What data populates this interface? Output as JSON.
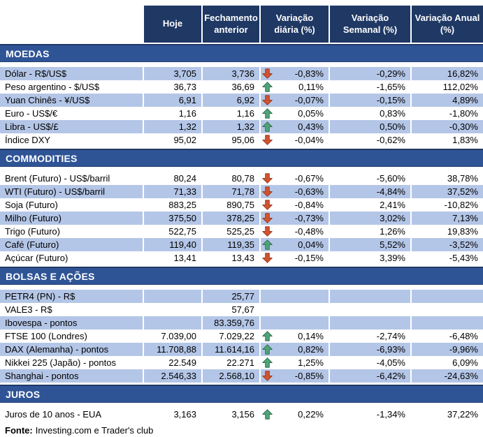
{
  "columns": [
    "Hoje",
    "Fechamento anterior",
    "Variação diária (%)",
    "Variação Semanal (%)",
    "Variação Anual (%)"
  ],
  "sections": [
    {
      "title": "MOEDAS",
      "first_row_shaded": true,
      "rows": [
        {
          "label": "Dólar - R$/US$",
          "hoje": "3,705",
          "anterior": "3,736",
          "arrow": "down",
          "var_diaria": "-0,83%",
          "var_semanal": "-0,29%",
          "var_anual": "16,82%"
        },
        {
          "label": "Peso argentino - $/US$",
          "hoje": "36,73",
          "anterior": "36,69",
          "arrow": "up",
          "var_diaria": "0,11%",
          "var_semanal": "-1,65%",
          "var_anual": "112,02%"
        },
        {
          "label": "Yuan Chinês - ¥/US$",
          "hoje": "6,91",
          "anterior": "6,92",
          "arrow": "down",
          "var_diaria": "-0,07%",
          "var_semanal": "-0,15%",
          "var_anual": "4,89%"
        },
        {
          "label": "Euro - US$/€",
          "hoje": "1,16",
          "anterior": "1,16",
          "arrow": "up",
          "var_diaria": "0,05%",
          "var_semanal": "0,83%",
          "var_anual": "-1,80%"
        },
        {
          "label": "Libra - US$/£",
          "hoje": "1,32",
          "anterior": "1,32",
          "arrow": "up",
          "var_diaria": "0,43%",
          "var_semanal": "0,50%",
          "var_anual": "-0,30%"
        },
        {
          "label": "Índice DXY",
          "hoje": "95,02",
          "anterior": "95,06",
          "arrow": "down",
          "var_diaria": "-0,04%",
          "var_semanal": "-0,62%",
          "var_anual": "1,83%"
        }
      ]
    },
    {
      "title": "COMMODITIES",
      "first_row_shaded": false,
      "rows": [
        {
          "label": "Brent (Futuro) - US$/barril",
          "hoje": "80,24",
          "anterior": "80,78",
          "arrow": "down",
          "var_diaria": "-0,67%",
          "var_semanal": "-5,60%",
          "var_anual": "38,78%"
        },
        {
          "label": "WTI (Futuro) - US$/barril",
          "hoje": "71,33",
          "anterior": "71,78",
          "arrow": "down",
          "var_diaria": "-0,63%",
          "var_semanal": "-4,84%",
          "var_anual": "37,52%"
        },
        {
          "label": "Soja (Futuro)",
          "hoje": "883,25",
          "anterior": "890,75",
          "arrow": "down",
          "var_diaria": "-0,84%",
          "var_semanal": "2,41%",
          "var_anual": "-10,82%"
        },
        {
          "label": "Milho (Futuro)",
          "hoje": "375,50",
          "anterior": "378,25",
          "arrow": "down",
          "var_diaria": "-0,73%",
          "var_semanal": "3,02%",
          "var_anual": "7,13%"
        },
        {
          "label": "Trigo (Futuro)",
          "hoje": "522,75",
          "anterior": "525,25",
          "arrow": "down",
          "var_diaria": "-0,48%",
          "var_semanal": "1,26%",
          "var_anual": "19,83%"
        },
        {
          "label": "Café (Futuro)",
          "hoje": "119,40",
          "anterior": "119,35",
          "arrow": "up",
          "var_diaria": "0,04%",
          "var_semanal": "5,52%",
          "var_anual": "-3,52%"
        },
        {
          "label": "Açúcar (Futuro)",
          "hoje": "13,41",
          "anterior": "13,43",
          "arrow": "down",
          "var_diaria": "-0,15%",
          "var_semanal": "3,39%",
          "var_anual": "-5,43%"
        }
      ]
    },
    {
      "title": "BOLSAS E AÇÕES",
      "first_row_shaded": true,
      "rows": [
        {
          "label": "PETR4 (PN) - R$",
          "hoje": "",
          "anterior": "25,77",
          "arrow": null,
          "var_diaria": "",
          "var_semanal": "",
          "var_anual": ""
        },
        {
          "label": "VALE3 - R$",
          "hoje": "",
          "anterior": "57,67",
          "arrow": null,
          "var_diaria": "",
          "var_semanal": "",
          "var_anual": ""
        },
        {
          "label": "Ibovespa - pontos",
          "hoje": "",
          "anterior": "83.359,76",
          "arrow": null,
          "var_diaria": "",
          "var_semanal": "",
          "var_anual": ""
        },
        {
          "label": "FTSE 100 (Londres)",
          "hoje": "7.039,00",
          "anterior": "7.029,22",
          "arrow": "up",
          "var_diaria": "0,14%",
          "var_semanal": "-2,74%",
          "var_anual": "-6,48%"
        },
        {
          "label": "DAX (Alemanha) - pontos",
          "hoje": "11.708,88",
          "anterior": "11.614,16",
          "arrow": "up",
          "var_diaria": "0,82%",
          "var_semanal": "-6,93%",
          "var_anual": "-9,96%"
        },
        {
          "label": "Nikkei 225 (Japão) - pontos",
          "hoje": "22.549",
          "anterior": "22.271",
          "arrow": "up",
          "var_diaria": "1,25%",
          "var_semanal": "-4,05%",
          "var_anual": "6,09%"
        },
        {
          "label": "Shanghai - pontos",
          "hoje": "2.546,33",
          "anterior": "2.568,10",
          "arrow": "down",
          "var_diaria": "-0,85%",
          "var_semanal": "-6,42%",
          "var_anual": "-24,63%"
        }
      ]
    },
    {
      "title": "JUROS",
      "first_row_shaded": false,
      "rows": [
        {
          "label": "Juros de 10 anos - EUA",
          "hoje": "3,163",
          "anterior": "3,156",
          "arrow": "up",
          "var_diaria": "0,22%",
          "var_semanal": "-1,34%",
          "var_anual": "37,22%"
        }
      ]
    }
  ],
  "footer": {
    "label": "Fonte:",
    "text": "Investing.com e Trader's club"
  },
  "colors": {
    "header_bg": "#1F3864",
    "section_bg": "#2F5496",
    "row_shaded": "#B4C6E7",
    "up_fill": "#4FA377",
    "up_stroke": "#2E7153",
    "down_fill": "#D0532F",
    "down_stroke": "#9A3A22"
  }
}
